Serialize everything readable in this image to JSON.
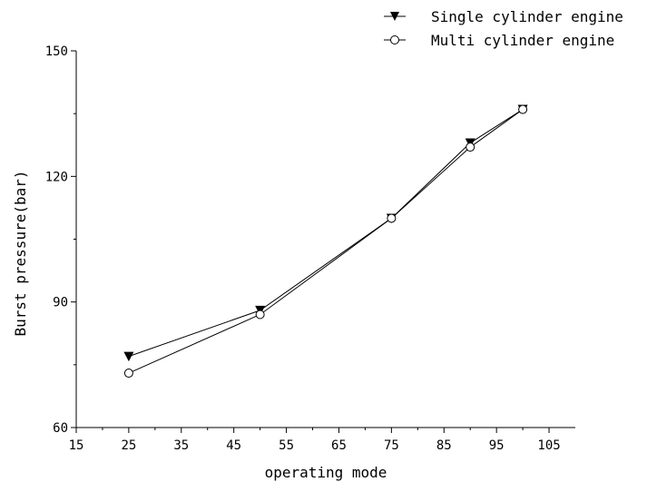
{
  "chart_data": {
    "type": "line",
    "title": "",
    "xlabel": "operating mode",
    "ylabel": "Burst pressure(bar)",
    "xlim": [
      15,
      110
    ],
    "ylim": [
      60,
      150
    ],
    "xticks": [
      15,
      25,
      35,
      45,
      55,
      65,
      75,
      85,
      95,
      105
    ],
    "yticks": [
      60,
      90,
      120,
      150
    ],
    "grid": false,
    "legend_position": "top-right",
    "series": [
      {
        "name": "Single cylinder engine",
        "marker": "filled-down-triangle",
        "color": "#000000",
        "x": [
          25,
          50,
          75,
          90,
          100
        ],
        "y": [
          77,
          88,
          110,
          128,
          136
        ]
      },
      {
        "name": "Multi cylinder engine",
        "marker": "open-circle",
        "color": "#000000",
        "x": [
          25,
          50,
          75,
          90,
          100
        ],
        "y": [
          73,
          87,
          110,
          127,
          136
        ]
      }
    ]
  }
}
